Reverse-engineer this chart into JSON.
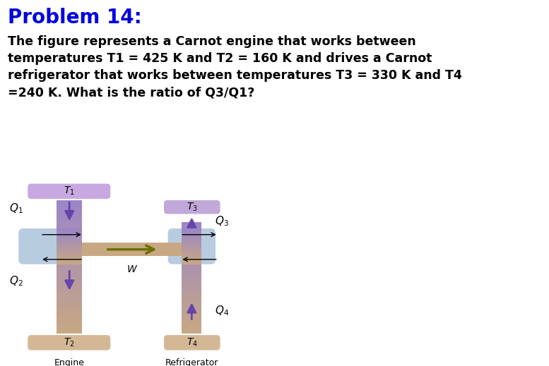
{
  "title": "Problem 14:",
  "title_color": "#0000DD",
  "title_fontsize": 20,
  "problem_text": "The figure represents a Carnot engine that works between\ntemperatures T1 = 425 K and T2 = 160 K and drives a Carnot\nrefrigerator that works between temperatures T3 = 330 K and T4\n=240 K. What is the ratio of Q3/Q1?",
  "problem_fontsize": 12.5,
  "bg_color": "#ffffff",
  "engine_label": "Engine",
  "refrigerator_label": "Refrigerator",
  "T1_label": "$T_1$",
  "T2_label": "$T_2$",
  "T3_label": "$T_3$",
  "T4_label": "$T_4$",
  "Q1_label": "$Q_1$",
  "Q2_label": "$Q_2$",
  "Q3_label": "$Q_3$",
  "Q4_label": "$Q_4$",
  "W_label": "$W$",
  "reservoir_color_top": "#C8A8E0",
  "reservoir_color_bot": "#D4B896",
  "col_purple": "#9B85C8",
  "col_tan": "#C8A882",
  "mid_blue": "#B8CCE0",
  "arrow_color": "#6644AA",
  "work_arrow_color": "#6B7000"
}
